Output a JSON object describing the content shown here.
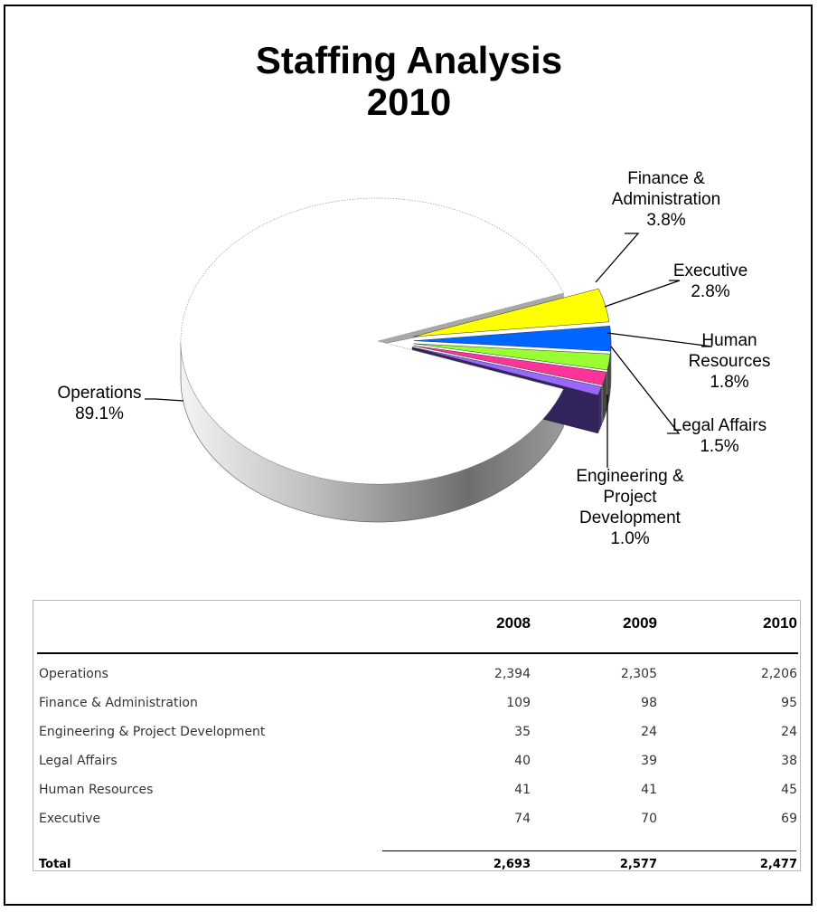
{
  "chart_data": [
    {
      "type": "pie",
      "title": "Staffing Analysis",
      "subtitle": "2010",
      "slices": [
        {
          "label": "Operations",
          "value": 89.1,
          "display": "89.1%",
          "color": "#ffffff"
        },
        {
          "label": "Finance & Administration",
          "value": 3.8,
          "display": "3.8%",
          "color": "#ffff00"
        },
        {
          "label": "Executive",
          "value": 2.8,
          "display": "2.8%",
          "color": "#0066ff"
        },
        {
          "label": "Human Resources",
          "value": 1.8,
          "display": "1.8%",
          "color": "#99ff33"
        },
        {
          "label": "Legal Affairs",
          "value": 1.5,
          "display": "1.5%",
          "color": "#ff3399"
        },
        {
          "label": "Engineering & Project Development",
          "value": 1.0,
          "display": "1.0%",
          "color": "#9966ff"
        }
      ],
      "label_lines": {
        "Operations": [
          "Operations",
          "89.1%"
        ],
        "Finance & Administration": [
          "Finance &",
          "Administration",
          "3.8%"
        ],
        "Executive": [
          "Executive",
          "2.8%"
        ],
        "Human Resources": [
          "Human",
          "Resources",
          "1.8%"
        ],
        "Legal Affairs": [
          "Legal Affairs",
          "1.5%"
        ],
        "Engineering & Project Development": [
          "Engineering &",
          "Project",
          "Development",
          "1.0%"
        ]
      }
    },
    {
      "type": "table",
      "columns": [
        "",
        "2008",
        "2009",
        "2010"
      ],
      "rows": [
        {
          "label": "Operations",
          "values": [
            "2,394",
            "2,305",
            "2,206"
          ]
        },
        {
          "label": "Finance & Administration",
          "values": [
            "109",
            "98",
            "95"
          ]
        },
        {
          "label": "Engineering & Project Development",
          "values": [
            "35",
            "24",
            "24"
          ]
        },
        {
          "label": "Legal Affairs",
          "values": [
            "40",
            "39",
            "38"
          ]
        },
        {
          "label": "Human Resources",
          "values": [
            "41",
            "41",
            "45"
          ]
        },
        {
          "label": "Executive",
          "values": [
            "74",
            "70",
            "69"
          ]
        }
      ],
      "total": {
        "label": "Total",
        "values": [
          "2,693",
          "2,577",
          "2,477"
        ]
      }
    }
  ]
}
